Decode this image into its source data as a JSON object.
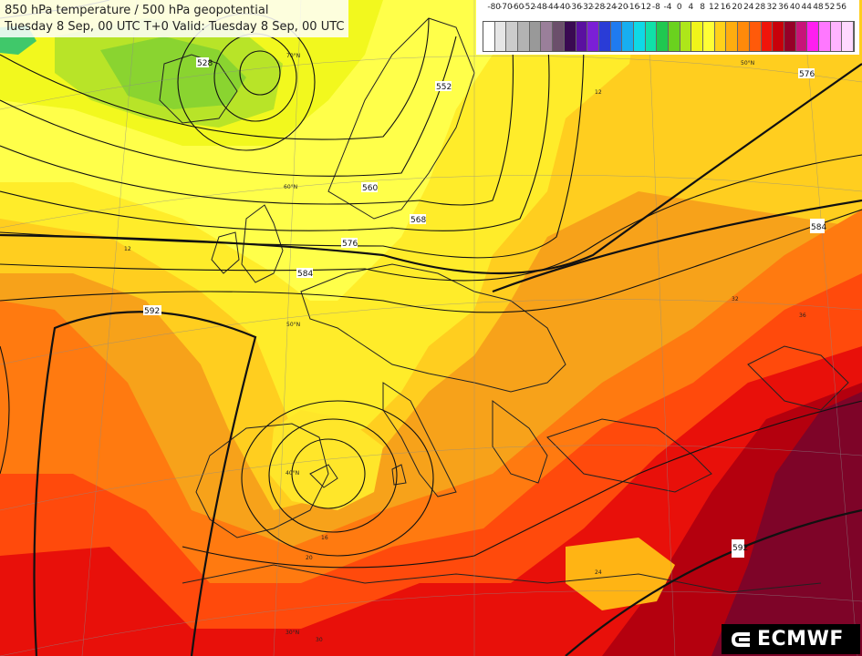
{
  "title": {
    "line1": "850 hPa temperature / 500 hPa geopotential",
    "line2": "Tuesday 8 Sep, 00 UTC T+0 Valid: Tuesday 8 Sep, 00 UTC"
  },
  "legend": {
    "labels": [
      "-80",
      "-70",
      "-60",
      "-52",
      "-48",
      "-44",
      "-40",
      "-36",
      "-32",
      "-28",
      "-24",
      "-20",
      "-16",
      "-12",
      "-8",
      "-4",
      "0",
      "4",
      "8",
      "12",
      "16",
      "20",
      "24",
      "28",
      "32",
      "36",
      "40",
      "44",
      "48",
      "52",
      "56"
    ],
    "colors": [
      "#ffffff",
      "#e6e6e6",
      "#cccccc",
      "#b3b3b3",
      "#999999",
      "#9a7f9a",
      "#6b4f6b",
      "#3a0a52",
      "#5a10a0",
      "#7b1fd6",
      "#2a3cd6",
      "#1f7bf0",
      "#17aef0",
      "#0fd9e6",
      "#10e0a8",
      "#20c850",
      "#6ad21e",
      "#aee61a",
      "#f0f51a",
      "#ffff36",
      "#ffd11a",
      "#ffad0f",
      "#ff8a0a",
      "#ff5a0a",
      "#f0140a",
      "#c8000a",
      "#960028",
      "#c81478",
      "#ff1ef0",
      "#ff78ff",
      "#ffb4ff",
      "#ffd9ff"
    ]
  },
  "contour_labels": [
    "528",
    "552",
    "560",
    "568",
    "576",
    "584",
    "592",
    "584",
    "576",
    "592"
  ],
  "temp_labels": [
    "12",
    "16",
    "20",
    "24",
    "32",
    "36",
    "30",
    "12"
  ],
  "graticule_labels": [
    "70°N",
    "60°N",
    "50°N",
    "40°N",
    "30°N",
    "50°N"
  ],
  "logo": {
    "text": "ECMWF"
  }
}
